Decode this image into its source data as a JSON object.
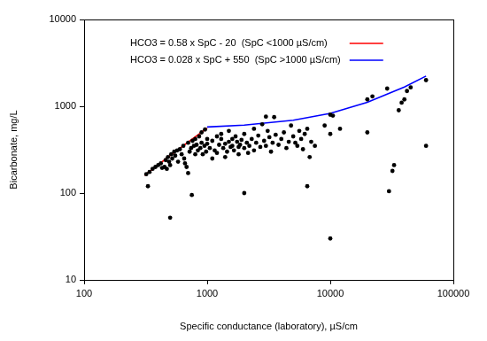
{
  "chart_data": {
    "type": "scatter",
    "x_label": "Specific conductance (laboratory), µS/cm",
    "y_label": "Bicarbonate, mg/L",
    "log": true,
    "grid": false,
    "legend": "upper left",
    "xlim": [
      100,
      100000
    ],
    "xticks": [
      100,
      1000,
      10000,
      100000
    ],
    "ylim": [
      10,
      10000
    ],
    "yticks": [
      10,
      100,
      1000,
      10000
    ],
    "series": [
      {
        "type": "scatter",
        "color": "#000000",
        "marker": "circle",
        "x": [
          320,
          330,
          340,
          360,
          380,
          400,
          420,
          430,
          450,
          460,
          470,
          480,
          490,
          500,
          500,
          510,
          520,
          540,
          550,
          570,
          580,
          600,
          620,
          640,
          650,
          660,
          680,
          700,
          700,
          720,
          740,
          750,
          760,
          780,
          800,
          800,
          820,
          840,
          860,
          880,
          900,
          900,
          920,
          950,
          960,
          980,
          1000,
          1000,
          1050,
          1100,
          1100,
          1150,
          1200,
          1200,
          1250,
          1300,
          1300,
          1350,
          1400,
          1400,
          1450,
          1500,
          1500,
          1550,
          1600,
          1600,
          1650,
          1700,
          1750,
          1800,
          1800,
          1850,
          1900,
          2000,
          2000,
          2000,
          2100,
          2150,
          2200,
          2300,
          2400,
          2400,
          2500,
          2600,
          2700,
          2800,
          2900,
          3000,
          3000,
          3100,
          3200,
          3300,
          3400,
          3500,
          3600,
          3800,
          4000,
          4200,
          4400,
          4600,
          4800,
          5000,
          5200,
          5400,
          5600,
          5800,
          6000,
          6200,
          6500,
          6500,
          6800,
          7000,
          7500,
          9000,
          10000,
          10000,
          10000,
          10500,
          12000,
          20000,
          20000,
          22000,
          29000,
          30000,
          32000,
          33000,
          36000,
          38000,
          40000,
          42000,
          45000,
          60000,
          60000
        ],
        "values": [
          165,
          120,
          175,
          190,
          200,
          210,
          220,
          195,
          200,
          240,
          190,
          260,
          230,
          52,
          210,
          280,
          250,
          300,
          270,
          310,
          230,
          320,
          280,
          350,
          250,
          220,
          200,
          380,
          170,
          300,
          330,
          95,
          400,
          350,
          280,
          420,
          360,
          310,
          450,
          330,
          380,
          500,
          280,
          350,
          540,
          300,
          370,
          420,
          330,
          250,
          400,
          310,
          450,
          290,
          360,
          420,
          480,
          330,
          370,
          260,
          300,
          520,
          390,
          340,
          420,
          350,
          310,
          450,
          390,
          340,
          280,
          360,
          410,
          100,
          480,
          330,
          380,
          290,
          350,
          420,
          550,
          310,
          380,
          460,
          340,
          620,
          400,
          760,
          350,
          520,
          440,
          300,
          380,
          750,
          470,
          360,
          420,
          500,
          330,
          390,
          600,
          450,
          380,
          350,
          520,
          420,
          320,
          480,
          120,
          550,
          260,
          390,
          350,
          600,
          30,
          480,
          800,
          780,
          550,
          500,
          1200,
          1300,
          1600,
          105,
          180,
          210,
          900,
          1100,
          1200,
          1500,
          1650,
          2000,
          350
        ]
      },
      {
        "name": "HCO3 = 0.58 x SpC - 20  (SpC <1000 µS/cm)",
        "type": "line",
        "color": "#ff0000",
        "line_style": "solid",
        "x": [
          310,
          500,
          700,
          1000
        ],
        "values": [
          160,
          270,
          386,
          560
        ]
      },
      {
        "name": "HCO3 = 0.028 x SpC + 550  (SpC >1000 µS/cm)",
        "type": "line",
        "color": "#0000ff",
        "line_style": "solid",
        "x": [
          1000,
          2000,
          5000,
          10000,
          20000,
          40000,
          60000
        ],
        "values": [
          578,
          606,
          690,
          830,
          1110,
          1670,
          2230
        ]
      }
    ]
  }
}
